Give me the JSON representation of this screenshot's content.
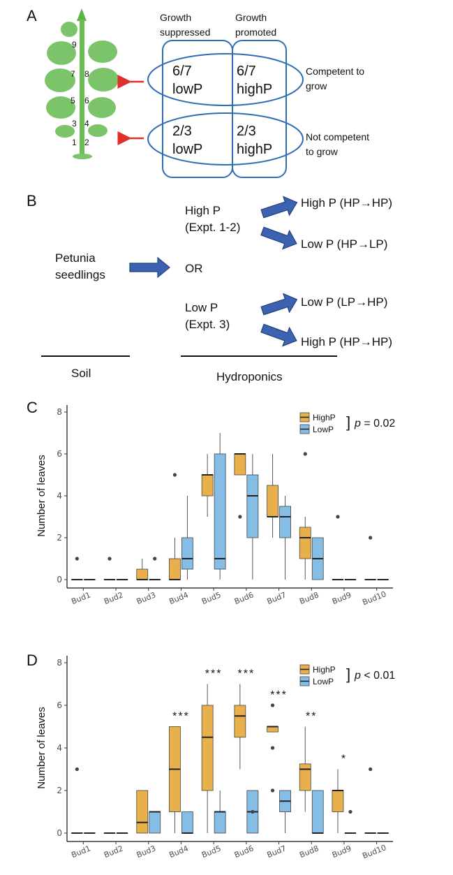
{
  "panel_a": {
    "letter": "A",
    "node_numbers": [
      "9",
      "7",
      "8",
      "5",
      "6",
      "3",
      "4",
      "1",
      "2"
    ],
    "col_headers": {
      "suppressed": [
        "Growth",
        "suppressed"
      ],
      "promoted": [
        "Growth",
        "promoted"
      ]
    },
    "cells": {
      "top_left": [
        "6/7",
        "lowP"
      ],
      "top_right": [
        "6/7",
        "highP"
      ],
      "bottom_left": [
        "2/3",
        "lowP"
      ],
      "bottom_right": [
        "2/3",
        "highP"
      ]
    },
    "row_labels": {
      "competent": [
        "Competent to",
        "grow"
      ],
      "not_competent": [
        "Not competent",
        "to grow"
      ]
    },
    "colors": {
      "plant": "#7cc46a",
      "stem": "#5db34a",
      "frame": "#2f6db5",
      "arrow": "#e0302b"
    }
  },
  "panel_b": {
    "letter": "B",
    "start": [
      "Petunia",
      "seedlings"
    ],
    "or_label": "OR",
    "high_p": [
      "High P",
      "(Expt. 1-2)"
    ],
    "low_p": [
      "Low P",
      "(Expt. 3)"
    ],
    "outcomes": [
      "High P (HP→HP)",
      "Low P (HP→LP)",
      "Low P (LP→HP)",
      "High P (HP→HP)"
    ],
    "soil": "Soil",
    "hydroponics": "Hydroponics",
    "colors": {
      "arrow_fill": "#3d63b0",
      "arrow_stroke": "#1f3f80"
    }
  },
  "chart_data": [
    {
      "type": "boxplot",
      "panel": "C",
      "ylabel": "Number of leaves",
      "ylim": [
        0,
        8
      ],
      "yticks": [
        0,
        2,
        4,
        6,
        8
      ],
      "categories": [
        "Bud1",
        "Bud2",
        "Bud3",
        "Bud4",
        "Bud5",
        "Bud6",
        "Bud7",
        "Bud8",
        "Bud9",
        "Bud10"
      ],
      "legend": [
        "HighP",
        "LowP"
      ],
      "pvalue_text": "p = 0.02",
      "pvalue_italic": "p",
      "pvalue_rest": " = 0.02",
      "significance": [
        "",
        "",
        "",
        "",
        "",
        "",
        "",
        "",
        "",
        ""
      ],
      "series": [
        {
          "name": "HighP",
          "color": "#e8b04a",
          "boxes": [
            {
              "min": 0,
              "q1": 0,
              "med": 0,
              "q3": 0,
              "max": 0,
              "out": [
                1
              ]
            },
            {
              "min": 0,
              "q1": 0,
              "med": 0,
              "q3": 0,
              "max": 0,
              "out": [
                1
              ]
            },
            {
              "min": 0,
              "q1": 0,
              "med": 0,
              "q3": 0.5,
              "max": 1,
              "out": []
            },
            {
              "min": 0,
              "q1": 0,
              "med": 0,
              "q3": 1,
              "max": 2,
              "out": [
                5
              ]
            },
            {
              "min": 3,
              "q1": 4,
              "med": 5,
              "q3": 5,
              "max": 6,
              "out": []
            },
            {
              "min": 5,
              "q1": 5,
              "med": 6,
              "q3": 6,
              "max": 6,
              "out": [
                3
              ]
            },
            {
              "min": 2,
              "q1": 3,
              "med": 3,
              "q3": 4.5,
              "max": 6,
              "out": []
            },
            {
              "min": 0,
              "q1": 1,
              "med": 2,
              "q3": 2.5,
              "max": 3,
              "out": [
                6
              ]
            },
            {
              "min": 0,
              "q1": 0,
              "med": 0,
              "q3": 0,
              "max": 0,
              "out": [
                3
              ]
            },
            {
              "min": 0,
              "q1": 0,
              "med": 0,
              "q3": 0,
              "max": 0,
              "out": [
                2
              ]
            }
          ]
        },
        {
          "name": "LowP",
          "color": "#86bde6",
          "boxes": [
            {
              "min": 0,
              "q1": 0,
              "med": 0,
              "q3": 0,
              "max": 0,
              "out": []
            },
            {
              "min": 0,
              "q1": 0,
              "med": 0,
              "q3": 0,
              "max": 0,
              "out": []
            },
            {
              "min": 0,
              "q1": 0,
              "med": 0,
              "q3": 0,
              "max": 0,
              "out": [
                1
              ]
            },
            {
              "min": 0,
              "q1": 0.5,
              "med": 1,
              "q3": 2,
              "max": 4,
              "out": []
            },
            {
              "min": 0,
              "q1": 0.5,
              "med": 1,
              "q3": 6,
              "max": 7,
              "out": []
            },
            {
              "min": 0,
              "q1": 2,
              "med": 4,
              "q3": 5,
              "max": 6,
              "out": []
            },
            {
              "min": 0,
              "q1": 2,
              "med": 3,
              "q3": 3.5,
              "max": 4,
              "out": []
            },
            {
              "min": 0,
              "q1": 0,
              "med": 1,
              "q3": 2,
              "max": 2,
              "out": []
            },
            {
              "min": 0,
              "q1": 0,
              "med": 0,
              "q3": 0,
              "max": 0,
              "out": []
            },
            {
              "min": 0,
              "q1": 0,
              "med": 0,
              "q3": 0,
              "max": 0,
              "out": []
            }
          ]
        }
      ]
    },
    {
      "type": "boxplot",
      "panel": "D",
      "ylabel": "Number of leaves",
      "ylim": [
        0,
        8
      ],
      "yticks": [
        0,
        2,
        4,
        6,
        8
      ],
      "categories": [
        "Bud1",
        "Bud2",
        "Bud3",
        "Bud4",
        "Bud5",
        "Bud6",
        "Bud7",
        "Bud8",
        "Bud9",
        "Bud10"
      ],
      "legend": [
        "HighP",
        "LowP"
      ],
      "pvalue_text": "p < 0.01",
      "pvalue_italic": "p",
      "pvalue_rest": " < 0.01",
      "significance": [
        "",
        "",
        "",
        "***",
        "***",
        "***",
        "***",
        "**",
        "*",
        ""
      ],
      "series": [
        {
          "name": "HighP",
          "color": "#e8b04a",
          "boxes": [
            {
              "min": 0,
              "q1": 0,
              "med": 0,
              "q3": 0,
              "max": 0,
              "out": [
                3
              ]
            },
            {
              "min": 0,
              "q1": 0,
              "med": 0,
              "q3": 0,
              "max": 0,
              "out": []
            },
            {
              "min": 0,
              "q1": 0,
              "med": 0.5,
              "q3": 2,
              "max": 2,
              "out": []
            },
            {
              "min": 0,
              "q1": 1,
              "med": 3,
              "q3": 5,
              "max": 5,
              "out": []
            },
            {
              "min": 0,
              "q1": 2,
              "med": 4.5,
              "q3": 6,
              "max": 7,
              "out": []
            },
            {
              "min": 3,
              "q1": 4.5,
              "med": 5.5,
              "q3": 6,
              "max": 7,
              "out": []
            },
            {
              "min": 4.75,
              "q1": 4.75,
              "med": 5,
              "q3": 5,
              "max": 5,
              "out": [
                6,
                4,
                2
              ]
            },
            {
              "min": 1,
              "q1": 2,
              "med": 3,
              "q3": 3.25,
              "max": 5,
              "out": []
            },
            {
              "min": 0,
              "q1": 1,
              "med": 2,
              "q3": 2,
              "max": 3,
              "out": []
            },
            {
              "min": 0,
              "q1": 0,
              "med": 0,
              "q3": 0,
              "max": 0,
              "out": [
                3
              ]
            }
          ]
        },
        {
          "name": "LowP",
          "color": "#86bde6",
          "boxes": [
            {
              "min": 0,
              "q1": 0,
              "med": 0,
              "q3": 0,
              "max": 0,
              "out": []
            },
            {
              "min": 0,
              "q1": 0,
              "med": 0,
              "q3": 0,
              "max": 0,
              "out": []
            },
            {
              "min": 0,
              "q1": 0,
              "med": 1,
              "q3": 1,
              "max": 1,
              "out": []
            },
            {
              "min": 0,
              "q1": 0,
              "med": 0,
              "q3": 1,
              "max": 1,
              "out": []
            },
            {
              "min": 0,
              "q1": 0,
              "med": 1,
              "q3": 1,
              "max": 2,
              "out": []
            },
            {
              "min": 0,
              "q1": 0,
              "med": 1,
              "q3": 2,
              "max": 2,
              "out": [
                1
              ]
            },
            {
              "min": 0,
              "q1": 1,
              "med": 1.5,
              "q3": 2,
              "max": 2,
              "out": []
            },
            {
              "min": 0,
              "q1": 0,
              "med": 0,
              "q3": 2,
              "max": 2,
              "out": []
            },
            {
              "min": 0,
              "q1": 0,
              "med": 0,
              "q3": 0,
              "max": 0,
              "out": [
                1
              ]
            },
            {
              "min": 0,
              "q1": 0,
              "med": 0,
              "q3": 0,
              "max": 0,
              "out": []
            }
          ]
        }
      ]
    }
  ],
  "panel_letters": {
    "c": "C",
    "d": "D"
  }
}
